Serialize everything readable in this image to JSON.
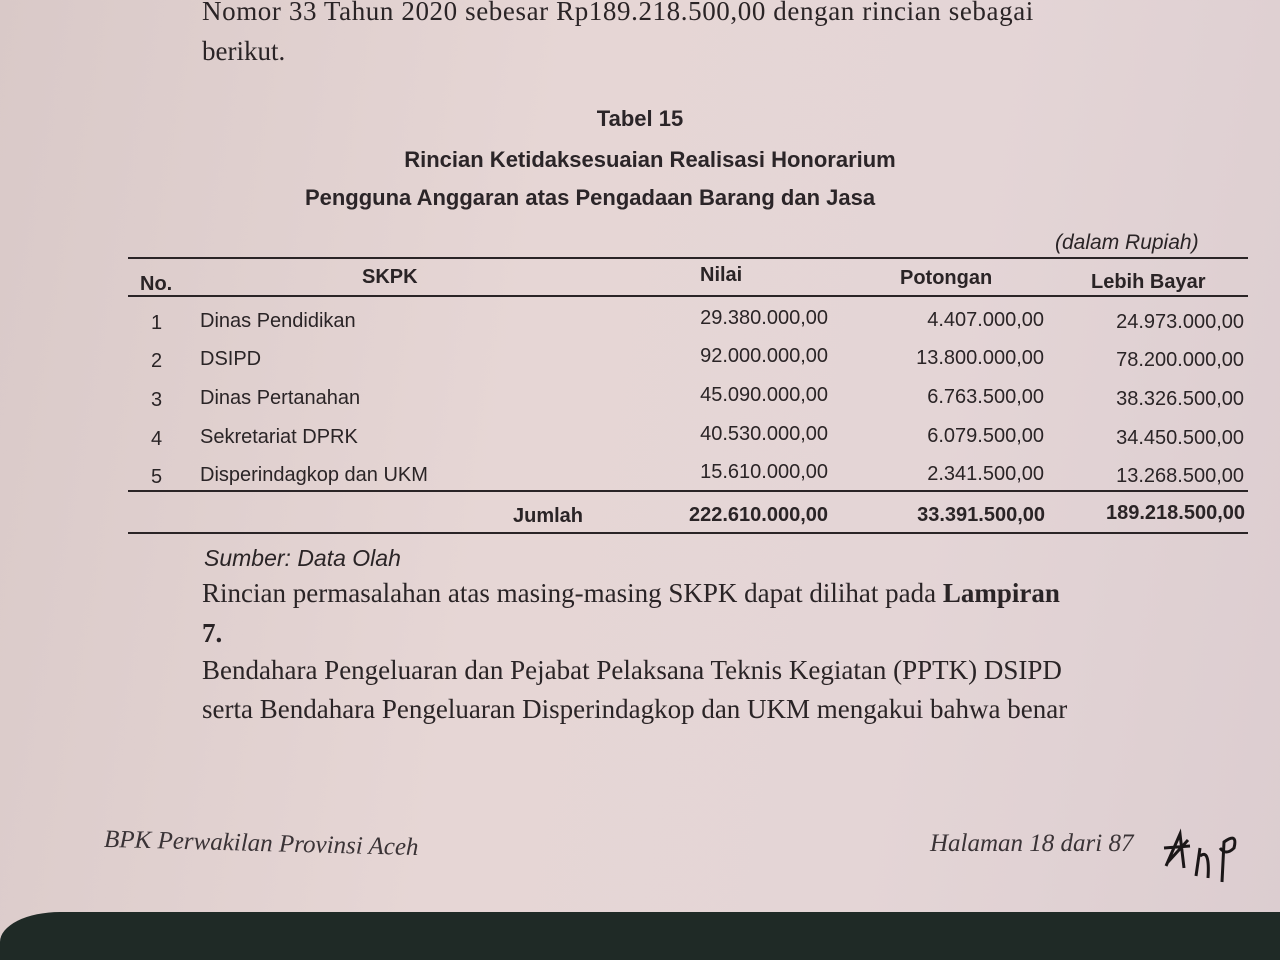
{
  "intro": {
    "line1": "Nomor 33 Tahun 2020 sebesar Rp189.218.500,00 dengan rincian sebagai",
    "line2": "berikut."
  },
  "table": {
    "number": "Tabel 15",
    "title1": "Rincian Ketidaksesuaian Realisasi Honorarium",
    "title2": "Pengguna Anggaran atas Pengadaan Barang dan Jasa",
    "unit": "(dalam Rupiah)",
    "headers": [
      "No.",
      "SKPK",
      "Nilai",
      "Potongan",
      "Lebih Bayar"
    ],
    "rows": [
      [
        "1",
        "Dinas Pendidikan",
        "29.380.000,00",
        "4.407.000,00",
        "24.973.000,00"
      ],
      [
        "2",
        "DSIPD",
        "92.000.000,00",
        "13.800.000,00",
        "78.200.000,00"
      ],
      [
        "3",
        "Dinas Pertanahan",
        "45.090.000,00",
        "6.763.500,00",
        "38.326.500,00"
      ],
      [
        "4",
        "Sekretariat DPRK",
        "40.530.000,00",
        "6.079.500,00",
        "34.450.500,00"
      ],
      [
        "5",
        "Disperindagkop dan UKM",
        "15.610.000,00",
        "2.341.500,00",
        "13.268.500,00"
      ]
    ],
    "total": {
      "label": "Jumlah",
      "nilai": "222.610.000,00",
      "potongan": "33.391.500,00",
      "lebih_bayar": "189.218.500,00"
    },
    "source": "Sumber: Data Olah"
  },
  "body": {
    "p1_text": "Rincian permasalahan atas masing-masing SKPK dapat dilihat pada ",
    "p1_bold": "Lampiran",
    "p1_line2": "7.",
    "p2_line1": "Bendahara Pengeluaran dan Pejabat Pelaksana Teknis Kegiatan (PPTK) DSIPD",
    "p2_line2": "serta Bendahara Pengeluaran Disperindagkop dan UKM mengakui bahwa benar"
  },
  "footer": {
    "left": "BPK Perwakilan Provinsi Aceh",
    "right": "Halaman 18 dari 87",
    "initials": "ANP"
  }
}
